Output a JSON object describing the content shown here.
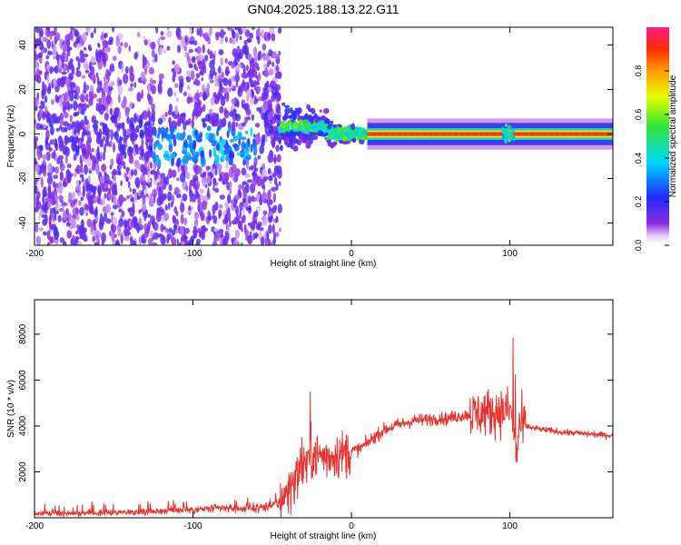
{
  "figure_title": "GN04.2025.188.13.22.G11",
  "colors": {
    "snr_line": "#e8322e",
    "noise_purple": "#7a1ee6",
    "axis": "#000000"
  },
  "colorbar": {
    "label": "Normalized spectral amplitude",
    "ticks": [
      "0.0",
      "0.2",
      "0.4",
      "0.6",
      "0.8"
    ],
    "tick_values": [
      0.0,
      0.2,
      0.4,
      0.6,
      0.8
    ],
    "range": [
      0,
      1
    ],
    "colormap": "rainbow (white-purple-blue-cyan-green-yellow-orange-red-magenta)"
  },
  "chart_data": [
    {
      "type": "heatmap",
      "title": "GN04.2025.188.13.22.G11",
      "xlabel": "Height of straight line (km)",
      "ylabel": "Frequency (Hz)",
      "xlim": [
        -200,
        165
      ],
      "ylim": [
        -50,
        48
      ],
      "xticks": [
        -200,
        -100,
        0,
        100
      ],
      "yticks": [
        -40,
        -20,
        0,
        20,
        40
      ],
      "xtick_labels": [
        "-200",
        "-100",
        "0",
        "100"
      ],
      "ytick_labels": [
        "-40",
        "-20",
        "0",
        "20",
        "40"
      ],
      "description_values": {
        "dominant_line_frequency_hz": 0,
        "noisy_region_km": [
          -200,
          -45
        ],
        "transition_region_km": [
          -45,
          10
        ],
        "clean_tone_region_km": [
          10,
          165
        ]
      }
    },
    {
      "type": "line",
      "xlabel": "Height of straight line (km)",
      "ylabel": "SNR (10 * v/v)",
      "xlim": [
        -200,
        165
      ],
      "ylim": [
        0,
        9500
      ],
      "xticks": [
        -200,
        -100,
        0,
        100
      ],
      "yticks": [
        2000,
        4000,
        6000,
        8000
      ],
      "xtick_labels": [
        "-200",
        "-100",
        "0",
        "100"
      ],
      "ytick_labels": [
        "2000",
        "4000",
        "6000",
        "8000"
      ],
      "series": [
        {
          "x": [
            -200,
            -180,
            -160,
            -140,
            -120,
            -110,
            -100,
            -90,
            -80,
            -70,
            -60,
            -50,
            -45,
            -40,
            -35,
            -30,
            -25,
            -20,
            -15,
            -10,
            -5,
            0,
            5,
            10,
            15,
            20,
            25,
            30,
            35,
            40,
            45,
            50,
            55,
            60,
            65,
            70,
            75,
            80,
            85,
            90,
            95,
            100,
            102,
            104,
            106,
            110,
            115,
            120,
            130,
            140,
            150,
            160,
            165
          ],
          "y": [
            180,
            200,
            220,
            250,
            300,
            350,
            330,
            380,
            420,
            400,
            430,
            480,
            700,
            1200,
            1800,
            2400,
            2700,
            2700,
            2650,
            2750,
            2800,
            2900,
            3000,
            3250,
            3550,
            3800,
            3950,
            4050,
            4150,
            4250,
            4250,
            4300,
            4350,
            4300,
            4400,
            4450,
            4500,
            4550,
            4600,
            4600,
            4650,
            4700,
            4200,
            2500,
            4000,
            4000,
            3900,
            3850,
            3750,
            3700,
            3650,
            3600,
            3600
          ]
        }
      ]
    }
  ]
}
